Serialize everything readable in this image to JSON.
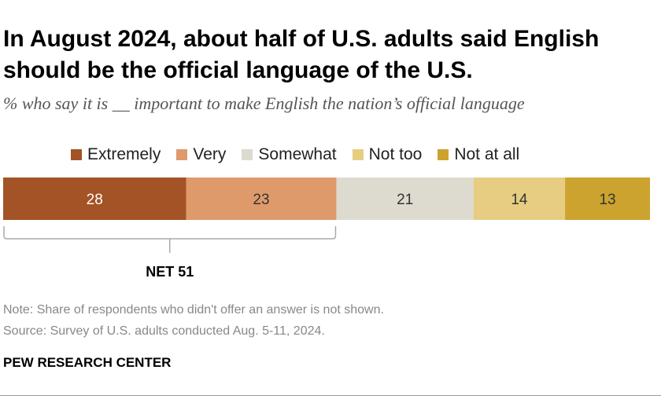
{
  "title": "In August 2024, about half of U.S. adults said English should be the official language of the U.S.",
  "subtitle": "% who say it is __ important to make English the nation’s official language",
  "legend": [
    {
      "label": "Extremely",
      "color": "#A35325"
    },
    {
      "label": "Very",
      "color": "#DE9A6B"
    },
    {
      "label": "Somewhat",
      "color": "#DDDACF"
    },
    {
      "label": "Not too",
      "color": "#E6CD82"
    },
    {
      "label": "Not at all",
      "color": "#CDA32F"
    }
  ],
  "chart_data": {
    "type": "bar",
    "stacked": true,
    "orientation": "horizontal",
    "categories": [
      "Extremely",
      "Very",
      "Somewhat",
      "Not too",
      "Not at all"
    ],
    "values": [
      28,
      23,
      21,
      14,
      13
    ],
    "colors": [
      "#A35325",
      "#DE9A6B",
      "#DDDACF",
      "#E6CD82",
      "#CDA32F"
    ],
    "label_colors": [
      "#ffffff",
      "#333333",
      "#333333",
      "#333333",
      "#333333"
    ],
    "net": {
      "label": "NET 51",
      "covers": [
        "Extremely",
        "Very"
      ],
      "value": 51
    },
    "legend_position": "top"
  },
  "note": "Note: Share of respondents who didn't offer an answer is not shown.",
  "source": "Source: Survey of U.S. adults conducted Aug. 5-11, 2024.",
  "brand": "PEW RESEARCH CENTER"
}
